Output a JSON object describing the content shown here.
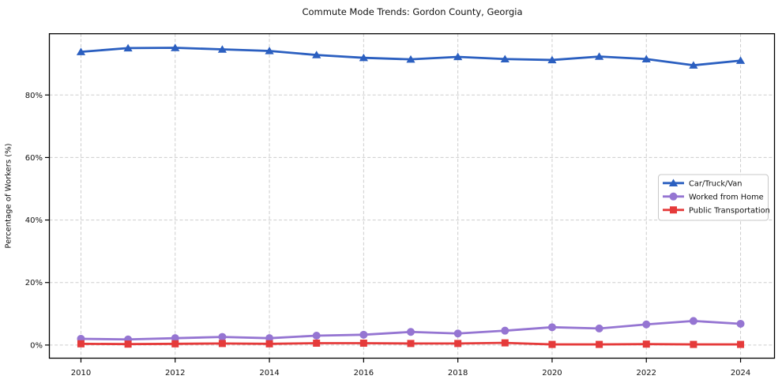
{
  "chart_data": {
    "type": "line",
    "title": "Commute Mode Trends: Gordon County, Georgia",
    "xlabel": "",
    "ylabel": "Percentage of Workers (%)",
    "x": [
      2010,
      2011,
      2012,
      2013,
      2014,
      2015,
      2016,
      2017,
      2018,
      2019,
      2020,
      2021,
      2022,
      2023,
      2024
    ],
    "x_ticks": [
      2010,
      2012,
      2014,
      2016,
      2018,
      2020,
      2022,
      2024
    ],
    "x_tick_labels": [
      "2010",
      "2012",
      "2014",
      "2016",
      "2018",
      "2020",
      "2022",
      "2024"
    ],
    "y_ticks": [
      0,
      20,
      40,
      60,
      80
    ],
    "y_tick_labels": [
      "0%",
      "20%",
      "40%",
      "60%",
      "80%"
    ],
    "xlim": [
      2009.33,
      2024.72
    ],
    "ylim": [
      -4.2,
      99.6
    ],
    "grid": true,
    "grid_style": "dashed",
    "legend_position": "center-right",
    "series": [
      {
        "name": "Car/Truck/Van",
        "color": "#2b5fc0",
        "marker": "triangle",
        "values": [
          93.8,
          95.0,
          95.1,
          94.6,
          94.1,
          92.8,
          91.9,
          91.4,
          92.2,
          91.5,
          91.2,
          92.3,
          91.5,
          89.5,
          91.0
        ]
      },
      {
        "name": "Worked from Home",
        "color": "#9575d2",
        "marker": "circle",
        "values": [
          2.0,
          1.8,
          2.2,
          2.6,
          2.2,
          3.0,
          3.3,
          4.2,
          3.7,
          4.6,
          5.7,
          5.3,
          6.6,
          7.7,
          6.8
        ]
      },
      {
        "name": "Public Transportation",
        "color": "#e53a3a",
        "marker": "square",
        "values": [
          0.4,
          0.3,
          0.4,
          0.5,
          0.4,
          0.6,
          0.6,
          0.5,
          0.5,
          0.7,
          0.2,
          0.2,
          0.3,
          0.2,
          0.2
        ]
      }
    ],
    "colors": {
      "grid": "#cdcdcd",
      "axis": "#000000",
      "text": "#111111",
      "legend_border": "#c8c8c8",
      "legend_bg": "#ffffff"
    }
  }
}
